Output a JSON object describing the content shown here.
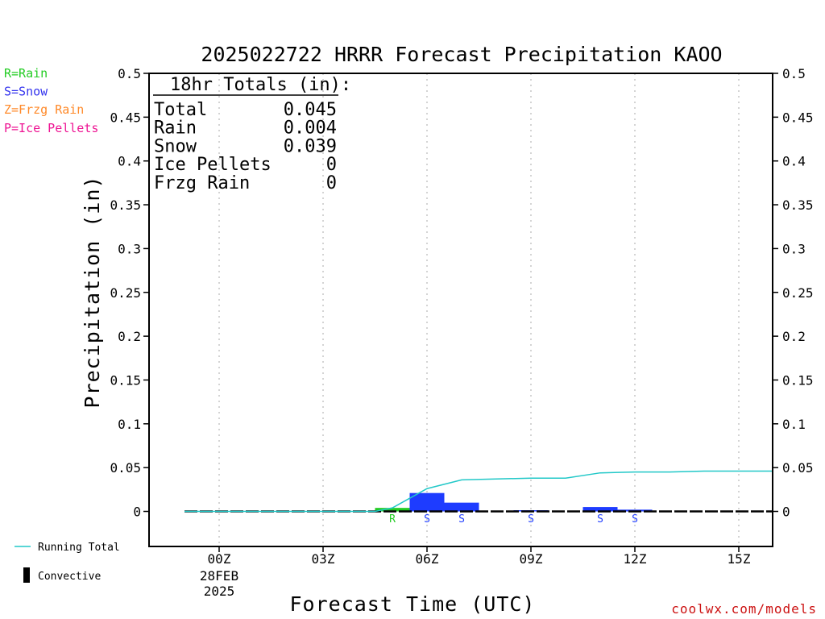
{
  "chart_data": {
    "type": "bar",
    "title": "2025022722 HRRR Forecast Precipitation KAOO",
    "xlabel": "Forecast Time (UTC)",
    "ylabel": "Precipitation (in)",
    "ylim": [
      -0.04,
      0.5
    ],
    "y_ticks": [
      0,
      0.05,
      0.1,
      0.15,
      0.2,
      0.25,
      0.3,
      0.35,
      0.4,
      0.45,
      0.5
    ],
    "y_tick_labels": [
      "0",
      "0.05",
      "0.1",
      "0.15",
      "0.2",
      "0.25",
      "0.3",
      "0.35",
      "0.4",
      "0.45",
      "0.5"
    ],
    "x_unit": "forecast hour",
    "xlim": [
      -1,
      16
    ],
    "x_ticks": [
      {
        "hour": 0,
        "label": "00Z",
        "date_line1": "28FEB",
        "date_line2": "2025"
      },
      {
        "hour": 3,
        "label": "03Z"
      },
      {
        "hour": 6,
        "label": "06Z"
      },
      {
        "hour": 9,
        "label": "09Z"
      },
      {
        "hour": 12,
        "label": "12Z"
      },
      {
        "hour": 15,
        "label": "15Z"
      }
    ],
    "grid": "vertical dotted at each x tick",
    "bars": [
      {
        "hour": 5,
        "value": 0.004,
        "type": "Rain",
        "marker": "R",
        "color": "#22cc22"
      },
      {
        "hour": 6,
        "value": 0.021,
        "type": "Snow",
        "marker": "S",
        "color": "#1e3cff"
      },
      {
        "hour": 7,
        "value": 0.01,
        "type": "Snow",
        "marker": "S",
        "color": "#1e3cff"
      },
      {
        "hour": 9,
        "value": 0.0005,
        "type": "Snow",
        "marker": "S",
        "color": "#1e3cff"
      },
      {
        "hour": 11,
        "value": 0.005,
        "type": "Snow",
        "marker": "S",
        "color": "#1e3cff"
      },
      {
        "hour": 12,
        "value": 0.002,
        "type": "Snow",
        "marker": "S",
        "color": "#1e3cff"
      }
    ],
    "running_total": {
      "name": "Running Total",
      "color": "#22c8c8",
      "x": [
        -1,
        0,
        1,
        2,
        3,
        4,
        4.5,
        5,
        5.5,
        6,
        7,
        8,
        9,
        10,
        11,
        12,
        13,
        14,
        15,
        16
      ],
      "y": [
        0,
        0,
        0,
        0,
        0,
        0,
        0,
        0.004,
        0.015,
        0.026,
        0.036,
        0.037,
        0.038,
        0.038,
        0.044,
        0.045,
        0.045,
        0.046,
        0.046,
        0.046
      ]
    },
    "convective_line": {
      "x_start": -1,
      "x_end": 16,
      "value": 0,
      "color": "#000000"
    }
  },
  "totals_box": {
    "heading": "18hr Totals (in):",
    "rows": [
      {
        "label": "Total",
        "value": "0.045"
      },
      {
        "label": "Rain",
        "value": "0.004"
      },
      {
        "label": "Snow",
        "value": "0.039"
      },
      {
        "label": "Ice Pellets",
        "value": "0"
      },
      {
        "label": "Frzg Rain",
        "value": "0"
      }
    ]
  },
  "type_legend": [
    {
      "text": "R=Rain",
      "color": "#22cc22"
    },
    {
      "text": "S=Snow",
      "color": "#3333ee"
    },
    {
      "text": "Z=Frzg Rain",
      "color": "#ff8a2a"
    },
    {
      "text": "P=Ice Pellets",
      "color": "#ee1493"
    }
  ],
  "line_legend": [
    {
      "text": "Running Total",
      "kind": "line",
      "color": "#22c8c8"
    },
    {
      "text": "Convective",
      "kind": "bar",
      "color": "#000000"
    }
  ],
  "credit": {
    "text": "coolwx.com/models",
    "color": "#cc1111"
  }
}
